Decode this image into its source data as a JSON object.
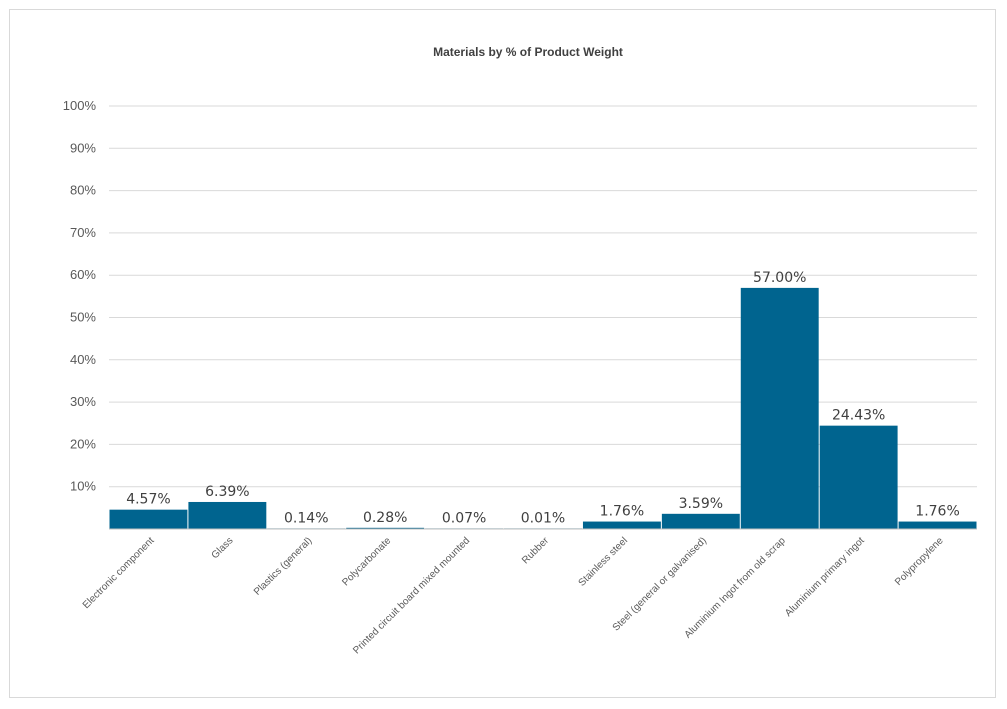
{
  "chart_data": {
    "type": "bar",
    "title": "Materials by % of Product Weight",
    "xlabel": "",
    "ylabel": "",
    "ylim": [
      0,
      100
    ],
    "yticks": [
      "10%",
      "20%",
      "30%",
      "40%",
      "50%",
      "60%",
      "70%",
      "80%",
      "90%",
      "100%"
    ],
    "ytick_values": [
      10,
      20,
      30,
      40,
      50,
      60,
      70,
      80,
      90,
      100
    ],
    "grid": true,
    "legend": "none",
    "bar_color": "#00648F",
    "categories": [
      "Electronic component",
      "Glass",
      "Plastics (general)",
      "Polycarbonate",
      "Printed circuit board mixed mounted",
      "Rubber",
      "Stainless steel",
      "Steel (general or galvanised)",
      "Aluminium Ingot from old scrap",
      "Aluminium primary ingot",
      "Polypropylene"
    ],
    "values": [
      4.57,
      6.39,
      0.14,
      0.28,
      0.07,
      0.01,
      1.76,
      3.59,
      57.0,
      24.43,
      1.76
    ],
    "data_labels": [
      "4.57%",
      "6.39%",
      "0.14%",
      "0.28%",
      "0.07%",
      "0.01%",
      "1.76%",
      "3.59%",
      "57.00%",
      "24.43%",
      "1.76%"
    ]
  }
}
